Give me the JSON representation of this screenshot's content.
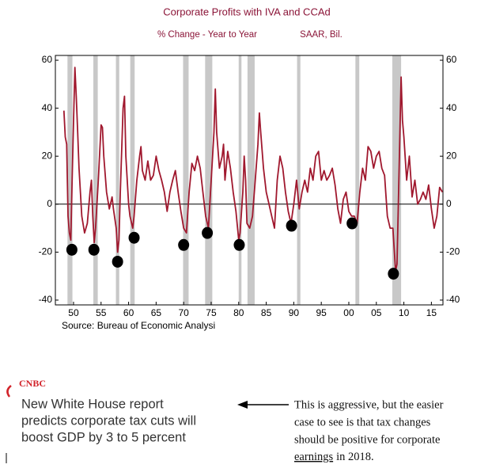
{
  "chart_data": {
    "type": "line",
    "title": "Corporate Profits with IVA and CCAd",
    "subtitle": [
      "% Change - Year to Year",
      "SAAR, Bil."
    ],
    "source": "Source:  Bureau of Economic Analysi",
    "xlim": [
      1946.7,
      2017.1
    ],
    "ylim": [
      -42,
      62
    ],
    "yticks": [
      60,
      40,
      20,
      0,
      -20,
      -40
    ],
    "y2lim": [
      -42,
      62
    ],
    "y2ticks": [
      60,
      40,
      20,
      0,
      -20,
      -40
    ],
    "xticks": [
      {
        "value": 1950,
        "label": "50"
      },
      {
        "value": 1955,
        "label": "55"
      },
      {
        "value": 1960,
        "label": "60"
      },
      {
        "value": 1965,
        "label": "65"
      },
      {
        "value": 1970,
        "label": "70"
      },
      {
        "value": 1975,
        "label": "75"
      },
      {
        "value": 1980,
        "label": "80"
      },
      {
        "value": 1985,
        "label": "85"
      },
      {
        "value": 1990,
        "label": "90"
      },
      {
        "value": 1995,
        "label": "95"
      },
      {
        "value": 2000,
        "label": "00"
      },
      {
        "value": 2005,
        "label": "05"
      },
      {
        "value": 2010,
        "label": "10"
      },
      {
        "value": 2015,
        "label": "15"
      }
    ],
    "recessions": [
      [
        1948.9,
        1949.8
      ],
      [
        1953.6,
        1954.4
      ],
      [
        1957.7,
        1958.3
      ],
      [
        1960.3,
        1961.1
      ],
      [
        1969.9,
        1970.9
      ],
      [
        1973.9,
        1975.2
      ],
      [
        1980.0,
        1980.5
      ],
      [
        1981.6,
        1982.9
      ],
      [
        1990.6,
        1991.2
      ],
      [
        2001.2,
        2001.9
      ],
      [
        2007.9,
        2009.5
      ]
    ],
    "recession_color": "#c8c8c8",
    "markers": {
      "color": "#000000",
      "x": [
        1949.7,
        1953.7,
        1958.0,
        1961.0,
        1970.0,
        1974.3,
        1980.1,
        1989.6,
        2000.6,
        2008.1
      ],
      "values": [
        -19,
        -19,
        -24,
        -14,
        -17,
        -12,
        -17,
        -9,
        -8,
        -29
      ]
    },
    "x": [
      1948.25,
      1948.5,
      1948.75,
      1949.0,
      1949.25,
      1949.5,
      1949.75,
      1950.0,
      1950.25,
      1950.5,
      1950.75,
      1951.0,
      1951.5,
      1952.0,
      1952.5,
      1953.0,
      1953.25,
      1953.5,
      1953.75,
      1954.0,
      1954.5,
      1955.0,
      1955.25,
      1955.5,
      1956.0,
      1956.5,
      1957.0,
      1957.25,
      1957.75,
      1958.0,
      1958.25,
      1958.5,
      1959.0,
      1959.25,
      1959.5,
      1960.0,
      1960.25,
      1960.75,
      1961.0,
      1961.5,
      1962.0,
      1962.25,
      1962.5,
      1963.0,
      1963.5,
      1964.0,
      1964.5,
      1965.0,
      1965.5,
      1966.0,
      1966.5,
      1967.0,
      1967.5,
      1968.0,
      1968.5,
      1969.0,
      1969.5,
      1970.0,
      1970.5,
      1971.0,
      1971.5,
      1972.0,
      1972.5,
      1973.0,
      1973.5,
      1974.0,
      1974.5,
      1975.0,
      1975.5,
      1975.75,
      1976.0,
      1976.5,
      1977.0,
      1977.25,
      1977.5,
      1978.0,
      1978.5,
      1979.0,
      1979.5,
      1980.0,
      1980.25,
      1980.75,
      1981.0,
      1981.25,
      1981.5,
      1982.0,
      1982.5,
      1983.0,
      1983.5,
      1983.75,
      1984.0,
      1984.5,
      1985.0,
      1985.5,
      1986.0,
      1986.5,
      1987.0,
      1987.5,
      1988.0,
      1988.5,
      1989.0,
      1989.5,
      1990.0,
      1990.5,
      1991.0,
      1991.5,
      1992.0,
      1992.5,
      1993.0,
      1993.5,
      1994.0,
      1994.5,
      1995.0,
      1995.5,
      1996.0,
      1996.5,
      1997.0,
      1997.5,
      1998.0,
      1998.5,
      1999.0,
      1999.5,
      2000.0,
      2000.5,
      2001.0,
      2001.5,
      2002.0,
      2002.5,
      2003.0,
      2003.5,
      2004.0,
      2004.5,
      2005.0,
      2005.5,
      2006.0,
      2006.5,
      2007.0,
      2007.5,
      2008.0,
      2008.5,
      2008.75,
      2009.0,
      2009.5,
      2009.75,
      2010.0,
      2010.5,
      2011.0,
      2011.5,
      2012.0,
      2012.5,
      2013.0,
      2013.5,
      2014.0,
      2014.5,
      2015.0,
      2015.5,
      2016.0,
      2016.5,
      2017.0
    ],
    "series": [
      {
        "color": "#a0182e",
        "values": [
          39,
          28,
          25,
          -5,
          -12,
          -15,
          10,
          35,
          57,
          45,
          30,
          15,
          -5,
          -12,
          -8,
          5,
          10,
          -5,
          -16,
          -10,
          10,
          33,
          32,
          20,
          5,
          -2,
          3,
          -2,
          -10,
          -20,
          -15,
          5,
          40,
          45,
          20,
          0,
          -5,
          -10,
          -5,
          10,
          20,
          24,
          14,
          10,
          18,
          10,
          12,
          20,
          14,
          10,
          5,
          -3,
          5,
          10,
          14,
          5,
          -3,
          -10,
          -12,
          5,
          17,
          14,
          20,
          15,
          5,
          -5,
          -10,
          10,
          30,
          48,
          30,
          15,
          20,
          25,
          10,
          22,
          15,
          5,
          -3,
          -15,
          -12,
          5,
          20,
          10,
          -8,
          -10,
          -5,
          10,
          25,
          38,
          30,
          15,
          5,
          0,
          -5,
          -10,
          10,
          20,
          15,
          5,
          -3,
          -8,
          0,
          10,
          -2,
          5,
          10,
          5,
          15,
          10,
          20,
          22,
          10,
          14,
          10,
          12,
          15,
          8,
          -2,
          -8,
          2,
          5,
          -3,
          -5,
          -5,
          -8,
          5,
          15,
          10,
          24,
          22,
          15,
          20,
          22,
          15,
          12,
          -5,
          -10,
          -10,
          -28,
          -25,
          0,
          53,
          35,
          28,
          10,
          20,
          3,
          10,
          0,
          2,
          5,
          2,
          8,
          -2,
          -10,
          -5,
          7,
          5
        ]
      }
    ]
  },
  "cnbc": {
    "logo": "CNBC",
    "headline": [
      "New White House report",
      "predicts corporate tax cuts will",
      "boost GDP by 3 to 5 percent"
    ]
  },
  "note": {
    "lines": [
      "This is aggressive, but the easier",
      "case to see is that tax changes",
      "should be positive for corporate"
    ],
    "underlined": "earnings",
    "rest": "in 2018."
  }
}
